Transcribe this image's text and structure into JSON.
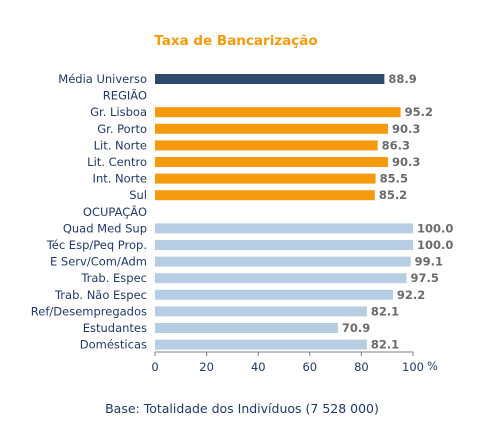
{
  "chart_data": {
    "type": "bar",
    "orientation": "horizontal",
    "title": "Taxa de Bancarização",
    "x_unit": "%",
    "xlim": [
      0,
      100
    ],
    "x_ticks": [
      "0",
      "20",
      "40",
      "60",
      "80",
      "100"
    ],
    "grid": false,
    "categories": [
      {
        "label": "Média Universo",
        "value": 88.9,
        "value_label": "88.9",
        "color": "#2e4a6b"
      },
      {
        "label": "REGIÃO",
        "value": null,
        "value_label": null,
        "color": null
      },
      {
        "label": "Gr. Lisboa",
        "value": 95.2,
        "value_label": "95.2",
        "color": "#f59a0c"
      },
      {
        "label": "Gr. Porto",
        "value": 90.3,
        "value_label": "90.3",
        "color": "#f59a0c"
      },
      {
        "label": "Lit. Norte",
        "value": 86.3,
        "value_label": "86.3",
        "color": "#f59a0c"
      },
      {
        "label": "Lit. Centro",
        "value": 90.3,
        "value_label": "90.3",
        "color": "#f59a0c"
      },
      {
        "label": "Int. Norte",
        "value": 85.5,
        "value_label": "85.5",
        "color": "#f59a0c"
      },
      {
        "label": "Sul",
        "value": 85.2,
        "value_label": "85.2",
        "color": "#f59a0c"
      },
      {
        "label": "OCUPAÇÃO",
        "value": null,
        "value_label": null,
        "color": null
      },
      {
        "label": "Quad Med Sup",
        "value": 100.0,
        "value_label": "100.0",
        "color": "#b7cde3"
      },
      {
        "label": "Téc Esp/Peq Prop.",
        "value": 100.0,
        "value_label": "100.0",
        "color": "#b7cde3"
      },
      {
        "label": "E Serv/Com/Adm",
        "value": 99.1,
        "value_label": "99.1",
        "color": "#b7cde3"
      },
      {
        "label": "Trab. Espec",
        "value": 97.5,
        "value_label": "97.5",
        "color": "#b7cde3"
      },
      {
        "label": "Trab. Não Espec",
        "value": 92.2,
        "value_label": "92.2",
        "color": "#b7cde3"
      },
      {
        "label": "Ref/Desempregados",
        "value": 82.1,
        "value_label": "82.1",
        "color": "#b7cde3"
      },
      {
        "label": "Estudantes",
        "value": 70.9,
        "value_label": "70.9",
        "color": "#b7cde3"
      },
      {
        "label": "Domésticas",
        "value": 82.1,
        "value_label": "82.1",
        "color": "#b7cde3"
      }
    ]
  },
  "footnote": "Base: Totalidade dos Indivíduos (7 528 000)",
  "colors": {
    "title": "#f59a0c",
    "axis": "#808080",
    "text": "#1f3a66",
    "value_text": "#6b6b6b"
  }
}
